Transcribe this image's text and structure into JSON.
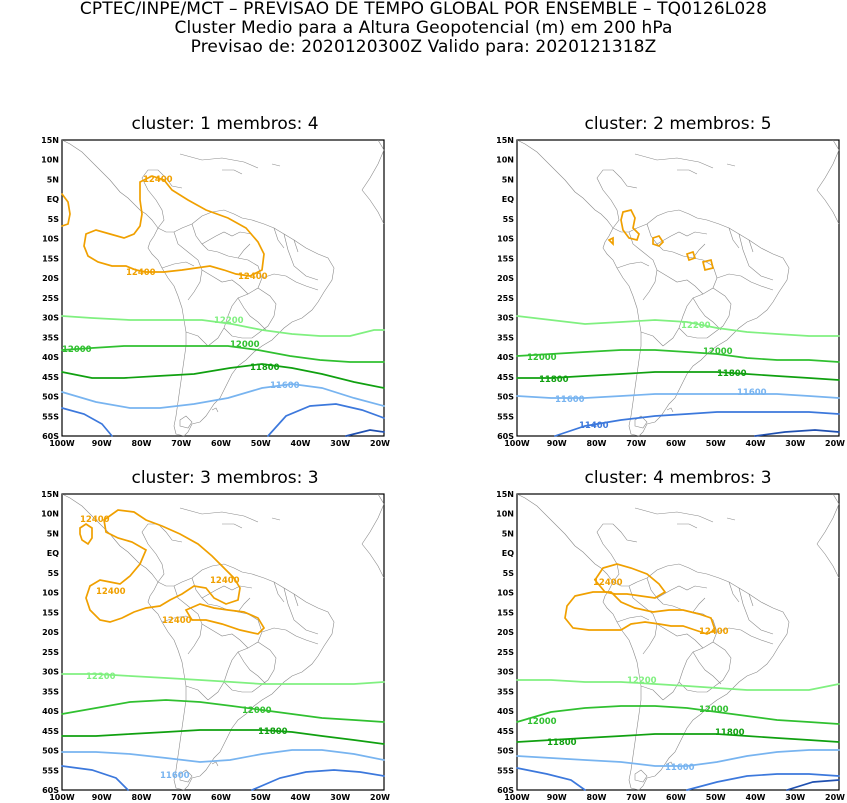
{
  "header": {
    "line1": "CPTEC/INPE/MCT – PREVISAO DE TEMPO GLOBAL POR ENSEMBLE – TQ0126L028",
    "line2": "Cluster Medio para a Altura Geopotencial (m) em 200 hPa",
    "line3": "Previsao de: 2020120300Z    Valido para: 2020121318Z"
  },
  "axes": {
    "lat_ticks": [
      "15N",
      "10N",
      "5N",
      "EQ",
      "5S",
      "10S",
      "15S",
      "20S",
      "25S",
      "30S",
      "35S",
      "40S",
      "45S",
      "50S",
      "55S",
      "60S"
    ],
    "lon_ticks": [
      "100W",
      "90W",
      "80W",
      "70W",
      "60W",
      "50W",
      "40W",
      "30W",
      "20W"
    ],
    "lat_range": [
      -60,
      15
    ],
    "lon_range": [
      -100,
      -19
    ]
  },
  "colors": {
    "c12400": "#f0a000",
    "c12200": "#80f080",
    "c12000": "#30c030",
    "c11800": "#10a010",
    "c11600": "#78b4f0",
    "c11400": "#3c78dc",
    "coast": "#8a8a8a"
  },
  "panels": [
    {
      "title": "cluster: 1   membros: 4",
      "labels": {
        "l12400a": "12400",
        "l12400b": "12400",
        "l12400c": "12400",
        "l12200": "12200",
        "l12000a": "12000",
        "l12000b": "12000",
        "l11800": "11800",
        "l11600": "11600"
      }
    },
    {
      "title": "cluster: 2   membros: 5",
      "labels": {
        "l12200": "12200",
        "l12000a": "12000",
        "l12000b": "12000",
        "l11800a": "11800",
        "l11800b": "11800",
        "l11600a": "11600",
        "l11600b": "11600",
        "l11400": "11400"
      }
    },
    {
      "title": "cluster: 3   membros: 3",
      "labels": {
        "l12400a": "12400",
        "l12400b": "12400",
        "l12400c": "12400",
        "l12400d": "12400",
        "l12200": "12200",
        "l12000": "12000",
        "l11800": "11800",
        "l11600": "11600"
      }
    },
    {
      "title": "cluster: 4   membros: 3",
      "labels": {
        "l12400a": "12400",
        "l12400b": "12400",
        "l12200": "12200",
        "l12000a": "12000",
        "l12000b": "12000",
        "l11800a": "11800",
        "l11800b": "11800",
        "l11600": "11600"
      }
    }
  ]
}
